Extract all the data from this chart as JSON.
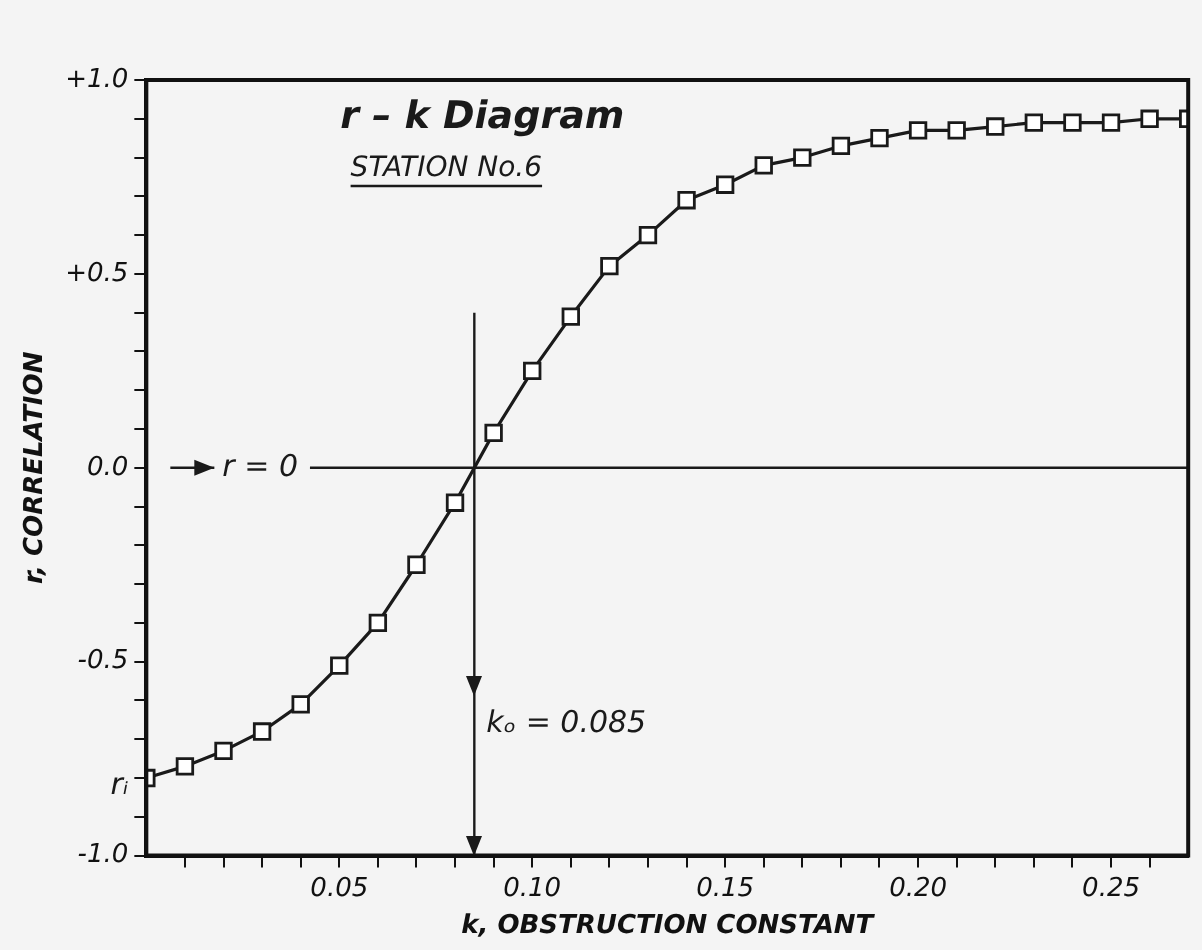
{
  "chart_data": {
    "type": "line",
    "title": "r – k Diagram",
    "subtitle": "STATION No.6",
    "xlabel": "k, OBSTRUCTION CONSTANT",
    "ylabel": "r, CORRELATION",
    "x": [
      0,
      0.01,
      0.02,
      0.03,
      0.04,
      0.05,
      0.06,
      0.07,
      0.08,
      0.09,
      0.1,
      0.11,
      0.12,
      0.13,
      0.14,
      0.15,
      0.16,
      0.17,
      0.18,
      0.19,
      0.2,
      0.21,
      0.22,
      0.23,
      0.24,
      0.25,
      0.26,
      0.27
    ],
    "series": [
      {
        "color": "#1a1a1a",
        "values": [
          -0.8,
          -0.77,
          -0.73,
          -0.68,
          -0.61,
          -0.51,
          -0.4,
          -0.25,
          -0.09,
          0.09,
          0.25,
          0.39,
          0.52,
          0.6,
          0.69,
          0.73,
          0.78,
          0.8,
          0.83,
          0.85,
          0.87,
          0.87,
          0.88,
          0.89,
          0.89,
          0.89,
          0.9,
          0.9
        ]
      }
    ],
    "xlim": [
      0,
      0.27
    ],
    "xticks": [
      {
        "value": 0.01,
        "label": null
      },
      {
        "value": 0.02,
        "label": null
      },
      {
        "value": 0.03,
        "label": null
      },
      {
        "value": 0.04,
        "label": null
      },
      {
        "value": 0.05,
        "label": "0.05"
      },
      {
        "value": 0.06,
        "label": null
      },
      {
        "value": 0.07,
        "label": null
      },
      {
        "value": 0.08,
        "label": null
      },
      {
        "value": 0.09,
        "label": null
      },
      {
        "value": 0.1,
        "label": "0.10"
      },
      {
        "value": 0.11,
        "label": null
      },
      {
        "value": 0.12,
        "label": null
      },
      {
        "value": 0.13,
        "label": null
      },
      {
        "value": 0.14,
        "label": null
      },
      {
        "value": 0.15,
        "label": "0.15"
      },
      {
        "value": 0.16,
        "label": null
      },
      {
        "value": 0.17,
        "label": null
      },
      {
        "value": 0.18,
        "label": null
      },
      {
        "value": 0.19,
        "label": null
      },
      {
        "value": 0.2,
        "label": "0.20"
      },
      {
        "value": 0.21,
        "label": null
      },
      {
        "value": 0.22,
        "label": null
      },
      {
        "value": 0.23,
        "label": null
      },
      {
        "value": 0.24,
        "label": null
      },
      {
        "value": 0.25,
        "label": "0.25"
      },
      {
        "value": 0.26,
        "label": null
      }
    ],
    "ylim": [
      -1,
      1
    ],
    "yticks": [
      {
        "value": -1,
        "label": "-1.0"
      },
      {
        "value": -0.9,
        "label": null
      },
      {
        "value": -0.8,
        "label": null
      },
      {
        "value": -0.7,
        "label": null
      },
      {
        "value": -0.6,
        "label": null
      },
      {
        "value": -0.5,
        "label": "-0.5"
      },
      {
        "value": -0.4,
        "label": null
      },
      {
        "value": -0.3,
        "label": null
      },
      {
        "value": -0.2,
        "label": null
      },
      {
        "value": -0.1,
        "label": null
      },
      {
        "value": 0,
        "label": "0.0"
      },
      {
        "value": 0.1,
        "label": null
      },
      {
        "value": 0.2,
        "label": null
      },
      {
        "value": 0.3,
        "label": null
      },
      {
        "value": 0.4,
        "label": null
      },
      {
        "value": 0.5,
        "label": "+0.5"
      },
      {
        "value": 0.6,
        "label": null
      },
      {
        "value": 0.7,
        "label": null
      },
      {
        "value": 0.8,
        "label": null
      },
      {
        "value": 0.9,
        "label": null
      },
      {
        "value": 1,
        "label": "+1.0"
      }
    ],
    "ref_lines": [
      {
        "axis": "y",
        "value": 0,
        "label": "r = 0",
        "color": "#1a1a1a"
      },
      {
        "axis": "x",
        "value": 0.085,
        "label": "kₒ = 0.085",
        "color": "#1a1a1a"
      }
    ],
    "annotations": [
      {
        "text": "rᵢ",
        "x": 0,
        "y": -0.8
      }
    ],
    "marker": "square",
    "line_style": "solid",
    "grid": false,
    "legend": false
  }
}
